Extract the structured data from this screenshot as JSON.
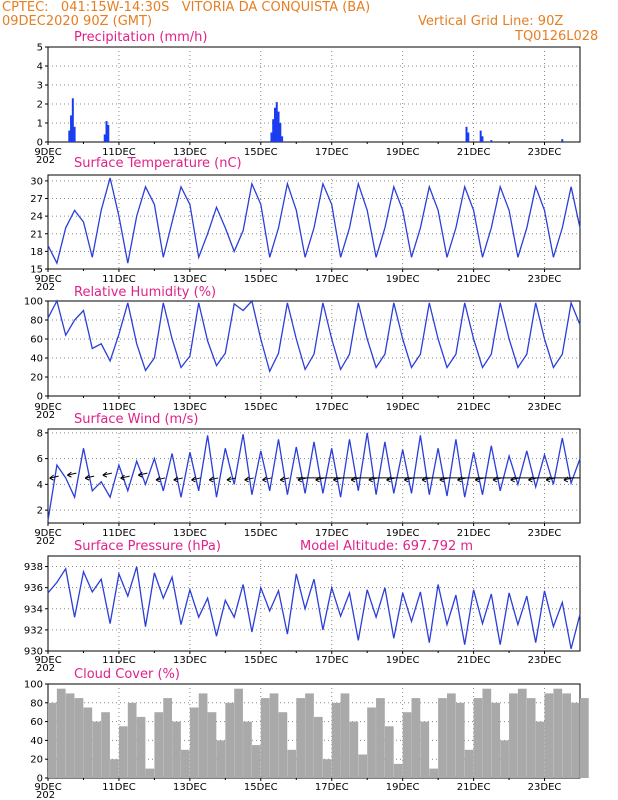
{
  "header": {
    "line1": "CPTEC:   041:15W-14:30S   VITORIA DA CONQUISTA (BA)",
    "line2_left": "09DEC2020 90Z (GMT)",
    "line2_right": "Vertical Grid Line: 90Z",
    "line3_right": "TQ0126L028"
  },
  "colors": {
    "header": "#e67e22",
    "title": "#e0218a",
    "line": "#2b3ed8",
    "bar_precip": "#1a3cf0",
    "bar_cloud": "#a9a9a9"
  },
  "x_axis": {
    "ticks": [
      "9DEC",
      "11DEC",
      "13DEC",
      "15DEC",
      "17DEC",
      "19DEC",
      "21DEC",
      "23DEC"
    ],
    "year_stub": "202"
  },
  "chart_data": [
    {
      "type": "bar",
      "title": "Precipitation (mm/h)",
      "x_unit": "days since 9DEC 00Z",
      "ylim": [
        0,
        5
      ],
      "yticks": [
        0,
        1,
        2,
        3,
        4,
        5
      ],
      "x": [
        0.6,
        0.65,
        0.7,
        0.75,
        1.6,
        1.65,
        1.7,
        6.3,
        6.35,
        6.4,
        6.45,
        6.5,
        6.55,
        6.6,
        11.8,
        11.85,
        12.2,
        12.25,
        12.5,
        14.5
      ],
      "values": [
        0.6,
        1.4,
        2.3,
        0.8,
        0.4,
        1.1,
        0.9,
        0.5,
        1.2,
        1.8,
        2.1,
        1.6,
        1.0,
        0.3,
        0.8,
        0.5,
        0.6,
        0.3,
        0.1,
        0.15
      ]
    },
    {
      "type": "line",
      "title": "Surface Temperature (nC)",
      "x_unit": "days since 9DEC 00Z",
      "ylim": [
        15,
        31
      ],
      "yticks": [
        15,
        18,
        21,
        24,
        27,
        30
      ],
      "x": [
        0,
        0.25,
        0.5,
        0.75,
        1,
        1.25,
        1.5,
        1.75,
        2,
        2.25,
        2.5,
        2.75,
        3,
        3.25,
        3.5,
        3.75,
        4,
        4.25,
        4.5,
        4.75,
        5,
        5.25,
        5.5,
        5.75,
        6,
        6.25,
        6.5,
        6.75,
        7,
        7.25,
        7.5,
        7.75,
        8,
        8.25,
        8.5,
        8.75,
        9,
        9.25,
        9.5,
        9.75,
        10,
        10.25,
        10.5,
        10.75,
        11,
        11.25,
        11.5,
        11.75,
        12,
        12.25,
        12.5,
        12.75,
        13,
        13.25,
        13.5,
        13.75,
        14,
        14.25,
        14.5,
        14.75,
        15
      ],
      "values": [
        19,
        16,
        22,
        25,
        23,
        17,
        25,
        30.5,
        24,
        16,
        24,
        29,
        26,
        17,
        23,
        29,
        26,
        17,
        21,
        25.5,
        22,
        18,
        21.5,
        29.5,
        26,
        17,
        22,
        29.5,
        25,
        17,
        22,
        29.5,
        26,
        17,
        22,
        29.5,
        25,
        17,
        22,
        29,
        25,
        17,
        22,
        29,
        25,
        17,
        22,
        29,
        25,
        17,
        22,
        29,
        25,
        17,
        22,
        29,
        25,
        17,
        22,
        29,
        22
      ]
    },
    {
      "type": "line",
      "title": "Relative Humidity (%)",
      "x_unit": "days since 9DEC 00Z",
      "ylim": [
        0,
        100
      ],
      "yticks": [
        0,
        20,
        40,
        60,
        80,
        100
      ],
      "x": [
        0,
        0.25,
        0.5,
        0.75,
        1,
        1.25,
        1.5,
        1.75,
        2,
        2.25,
        2.5,
        2.75,
        3,
        3.25,
        3.5,
        3.75,
        4,
        4.25,
        4.5,
        4.75,
        5,
        5.25,
        5.5,
        5.75,
        6,
        6.25,
        6.5,
        6.75,
        7,
        7.25,
        7.5,
        7.75,
        8,
        8.25,
        8.5,
        8.75,
        9,
        9.25,
        9.5,
        9.75,
        10,
        10.25,
        10.5,
        10.75,
        11,
        11.25,
        11.5,
        11.75,
        12,
        12.25,
        12.5,
        12.75,
        13,
        13.25,
        13.5,
        13.75,
        14,
        14.25,
        14.5,
        14.75,
        15
      ],
      "values": [
        82,
        100,
        64,
        80,
        90,
        50,
        55,
        37,
        65,
        98,
        55,
        27,
        40,
        98,
        60,
        30,
        42,
        98,
        58,
        32,
        45,
        97,
        90,
        100,
        60,
        26,
        45,
        98,
        60,
        28,
        44,
        98,
        60,
        28,
        44,
        98,
        60,
        30,
        44,
        98,
        60,
        30,
        44,
        98,
        60,
        30,
        44,
        98,
        60,
        30,
        44,
        98,
        60,
        30,
        44,
        98,
        60,
        30,
        44,
        98,
        75
      ]
    },
    {
      "type": "line",
      "title": "Surface Wind (m/s)",
      "x_unit": "days since 9DEC 00Z",
      "ylim": [
        1,
        8.3
      ],
      "yticks": [
        2,
        4,
        6,
        8
      ],
      "x": [
        0,
        0.25,
        0.5,
        0.75,
        1,
        1.25,
        1.5,
        1.75,
        2,
        2.25,
        2.5,
        2.75,
        3,
        3.25,
        3.5,
        3.75,
        4,
        4.25,
        4.5,
        4.75,
        5,
        5.25,
        5.5,
        5.75,
        6,
        6.25,
        6.5,
        6.75,
        7,
        7.25,
        7.5,
        7.75,
        8,
        8.25,
        8.5,
        8.75,
        9,
        9.25,
        9.5,
        9.75,
        10,
        10.25,
        10.5,
        10.75,
        11,
        11.25,
        11.5,
        11.75,
        12,
        12.25,
        12.5,
        12.75,
        13,
        13.25,
        13.5,
        13.75,
        14,
        14.25,
        14.5,
        14.75,
        15
      ],
      "values": [
        1.2,
        5.5,
        4.5,
        3,
        6.8,
        3.5,
        4.2,
        3,
        5.5,
        3.5,
        5.8,
        4,
        6,
        3.5,
        6.4,
        3,
        6.5,
        3.5,
        7.8,
        3,
        6.8,
        4,
        7.9,
        3.2,
        6.6,
        3.5,
        7.5,
        3.2,
        6.9,
        3.3,
        7.3,
        3.3,
        6.8,
        3,
        7.5,
        3.5,
        8,
        3.2,
        7.3,
        3.3,
        6.7,
        3.3,
        7.8,
        3.2,
        6.8,
        3.1,
        7.5,
        3,
        6.5,
        3.2,
        7,
        3.5,
        6.2,
        4,
        6.6,
        3.8,
        6.3,
        4,
        7.6,
        4.1,
        6
      ],
      "vector_y": 4.5
    },
    {
      "type": "line",
      "title": "Surface Pressure (hPa)",
      "annotation": "Model Altitude: 697.792 m",
      "x_unit": "days since 9DEC 00Z",
      "ylim": [
        930,
        939
      ],
      "yticks": [
        930,
        932,
        934,
        936,
        938
      ],
      "x": [
        0,
        0.25,
        0.5,
        0.75,
        1,
        1.25,
        1.5,
        1.75,
        2,
        2.25,
        2.5,
        2.75,
        3,
        3.25,
        3.5,
        3.75,
        4,
        4.25,
        4.5,
        4.75,
        5,
        5.25,
        5.5,
        5.75,
        6,
        6.25,
        6.5,
        6.75,
        7,
        7.25,
        7.5,
        7.75,
        8,
        8.25,
        8.5,
        8.75,
        9,
        9.25,
        9.5,
        9.75,
        10,
        10.25,
        10.5,
        10.75,
        11,
        11.25,
        11.5,
        11.75,
        12,
        12.25,
        12.5,
        12.75,
        13,
        13.25,
        13.5,
        13.75,
        14,
        14.25,
        14.5,
        14.75,
        15
      ],
      "values": [
        935.5,
        936.5,
        937.8,
        933.2,
        937.5,
        935.6,
        936.8,
        932.6,
        937.3,
        935.2,
        938,
        932.3,
        937.4,
        935,
        937,
        932.5,
        935.8,
        933.2,
        935,
        931.4,
        934.8,
        933.2,
        936.3,
        931.8,
        936,
        933.8,
        935.7,
        931.6,
        937.3,
        934,
        936.8,
        932,
        936,
        933.3,
        935.5,
        931,
        935.8,
        933.2,
        936,
        931.2,
        935.5,
        932.8,
        935.6,
        930.8,
        936.3,
        932.5,
        935.3,
        930.6,
        935.8,
        932.6,
        935.4,
        930.6,
        935.5,
        932.5,
        935.2,
        930.8,
        935.7,
        932.3,
        934.6,
        930.2,
        933.5
      ]
    },
    {
      "type": "bar",
      "title": "Cloud Cover (%)",
      "x_unit": "days since 9DEC 00Z",
      "ylim": [
        0,
        100
      ],
      "yticks": [
        0,
        20,
        40,
        60,
        80,
        100
      ],
      "x": [
        0,
        0.25,
        0.5,
        0.75,
        1,
        1.25,
        1.5,
        1.75,
        2,
        2.25,
        2.5,
        2.75,
        3,
        3.25,
        3.5,
        3.75,
        4,
        4.25,
        4.5,
        4.75,
        5,
        5.25,
        5.5,
        5.75,
        6,
        6.25,
        6.5,
        6.75,
        7,
        7.25,
        7.5,
        7.75,
        8,
        8.25,
        8.5,
        8.75,
        9,
        9.25,
        9.5,
        9.75,
        10,
        10.25,
        10.5,
        10.75,
        11,
        11.25,
        11.5,
        11.75,
        12,
        12.25,
        12.5,
        12.75,
        13,
        13.25,
        13.5,
        13.75,
        14,
        14.25,
        14.5,
        14.75,
        15
      ],
      "values": [
        80,
        95,
        90,
        85,
        75,
        60,
        70,
        20,
        55,
        80,
        65,
        10,
        70,
        85,
        60,
        30,
        75,
        90,
        70,
        40,
        80,
        95,
        60,
        35,
        85,
        90,
        70,
        30,
        85,
        90,
        65,
        20,
        80,
        90,
        60,
        25,
        75,
        85,
        55,
        15,
        70,
        85,
        60,
        10,
        85,
        90,
        80,
        30,
        85,
        95,
        80,
        40,
        90,
        95,
        85,
        60,
        90,
        95,
        90,
        80,
        85
      ]
    }
  ]
}
